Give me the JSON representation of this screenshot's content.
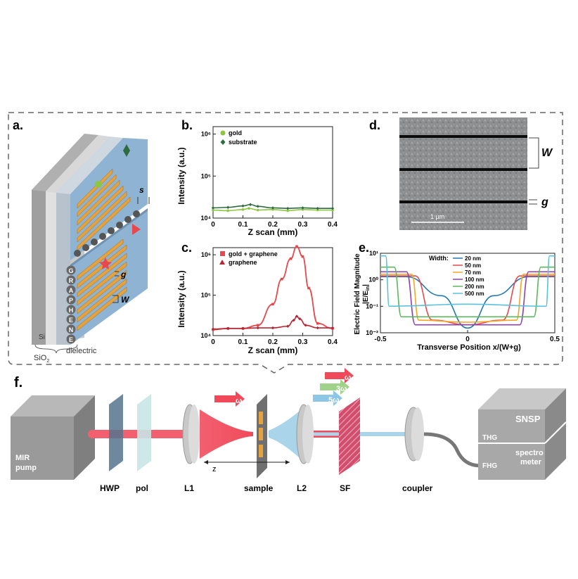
{
  "panels": {
    "a": {
      "label": "a.",
      "letters": [
        "G",
        "R",
        "A",
        "P",
        "H",
        "E",
        "N",
        "E"
      ],
      "si": "Si",
      "sio2": "SiO",
      "sio2_sub": "2",
      "dielectric": "dielectric",
      "s": "s",
      "g": "g",
      "w": "W"
    },
    "b": {
      "label": "b.",
      "ylabel": "Intensity (a.u.)",
      "xlabel": "Z scan (mm)",
      "legend": [
        "gold",
        "substrate"
      ]
    },
    "c": {
      "label": "c.",
      "ylabel": "Intensity (a.u.)",
      "xlabel": "Z scan (mm)",
      "legend": [
        "gold + graphene",
        "graphene"
      ]
    },
    "d": {
      "label": "d.",
      "w": "W",
      "g": "g",
      "scalebar": "1 µm"
    },
    "e": {
      "label": "e.",
      "ylabel_line1": "Electric Field Magnitude",
      "ylabel_line2": "|E/E",
      "ylabel_sub": "in",
      "ylabel_end": "|",
      "xlabel": "Transverse Position x/(W+g)",
      "legend_title": "Width:",
      "legend": [
        "20 nm",
        "50 nm",
        "70 nm",
        "100 nm",
        "200 nm",
        "500 nm"
      ]
    },
    "f": {
      "label": "f.",
      "mir": "MIR",
      "pump": "pump",
      "hwp": "HWP",
      "pol": "pol",
      "l1": "L1",
      "sample": "sample",
      "l2": "L2",
      "sf": "SF",
      "coupler": "coupler",
      "snsp": "SNSP",
      "spectro": "spectro",
      "meter": "meter",
      "thg": "THG",
      "fhg": "FHG",
      "z": "z",
      "omega": "ω",
      "omega3": "3ω",
      "omega5": "5ω"
    }
  },
  "colors": {
    "gold_green": "#8dc63f",
    "substrate_green": "#2e6b3e",
    "red": "#e8474c",
    "darkred": "#b82430",
    "chip_blue": "#8fb4d3",
    "beam_red": "#f04a5a",
    "beam_blue": "#a9d4ea"
  },
  "chart_data": [
    {
      "panel": "b",
      "type": "line",
      "xlim": [
        0,
        0.4
      ],
      "ylim": [
        10000,
        1500000
      ],
      "yscale": "log",
      "xticks": [
        0,
        0.1,
        0.2,
        0.3,
        0.4
      ],
      "yticks": [
        "10⁴",
        "10⁵",
        "10⁶"
      ],
      "series": [
        {
          "name": "gold",
          "x": [
            0,
            0.05,
            0.1,
            0.12,
            0.15,
            0.2,
            0.25,
            0.3,
            0.35,
            0.4
          ],
          "y": [
            15500,
            15000,
            16000,
            17000,
            15500,
            16000,
            15000,
            16000,
            15500,
            15500
          ]
        },
        {
          "name": "substrate",
          "x": [
            0,
            0.05,
            0.1,
            0.125,
            0.15,
            0.2,
            0.25,
            0.3,
            0.35,
            0.4
          ],
          "y": [
            17500,
            18000,
            19500,
            21000,
            19000,
            17500,
            17000,
            17500,
            17000,
            17000
          ]
        }
      ]
    },
    {
      "panel": "c",
      "type": "line",
      "xlim": [
        0,
        0.4
      ],
      "ylim": [
        10000,
        1500000
      ],
      "yscale": "log",
      "xticks": [
        0,
        0.1,
        0.2,
        0.3,
        0.4
      ],
      "yticks": [
        "10⁴",
        "10⁵",
        "10⁶"
      ],
      "series": [
        {
          "name": "gold + graphene",
          "x": [
            0,
            0.05,
            0.1,
            0.15,
            0.2,
            0.23,
            0.26,
            0.28,
            0.3,
            0.32,
            0.35,
            0.4
          ],
          "y": [
            14000,
            15000,
            15000,
            18000,
            60000,
            250000,
            800000,
            1600000,
            900000,
            150000,
            20000,
            15000
          ]
        },
        {
          "name": "graphene",
          "x": [
            0,
            0.05,
            0.1,
            0.15,
            0.2,
            0.25,
            0.27,
            0.28,
            0.29,
            0.31,
            0.35,
            0.4
          ],
          "y": [
            14500,
            15000,
            15000,
            15500,
            15500,
            17000,
            24000,
            30000,
            26000,
            18000,
            15500,
            15500
          ]
        }
      ]
    },
    {
      "panel": "e",
      "type": "line",
      "xlim": [
        -0.5,
        0.5
      ],
      "ylim": [
        0.01,
        10
      ],
      "yscale": "log",
      "xticks": [
        -0.5,
        0,
        0.5
      ],
      "yticks": [
        "10⁻²",
        "10⁻¹",
        "10⁰",
        "10¹"
      ],
      "series": [
        {
          "name": "20 nm",
          "x": [
            -0.5,
            -0.35,
            -0.15,
            0,
            0.15,
            0.35,
            0.5
          ],
          "y": [
            1.3,
            1.3,
            0.25,
            0.015,
            0.25,
            1.3,
            1.3
          ]
        },
        {
          "name": "50 nm",
          "x": [
            -0.5,
            -0.3,
            -0.2,
            0,
            0.2,
            0.3,
            0.5
          ],
          "y": [
            1.4,
            1.4,
            0.03,
            0.02,
            0.03,
            1.4,
            1.4
          ]
        },
        {
          "name": "70 nm",
          "x": [
            -0.5,
            -0.32,
            -0.28,
            0,
            0.28,
            0.32,
            0.5
          ],
          "y": [
            1.6,
            1.6,
            0.03,
            0.025,
            0.03,
            1.6,
            1.6
          ]
        },
        {
          "name": "100 nm",
          "x": [
            -0.5,
            -0.35,
            -0.3,
            0,
            0.3,
            0.35,
            0.5
          ],
          "y": [
            2,
            2,
            0.02,
            0.02,
            0.02,
            2,
            2
          ]
        },
        {
          "name": "200 nm",
          "x": [
            -0.5,
            -0.42,
            -0.38,
            0,
            0.38,
            0.42,
            0.5
          ],
          "y": [
            3,
            3,
            0.04,
            0.04,
            0.04,
            3,
            3
          ]
        },
        {
          "name": "500 nm",
          "x": [
            -0.5,
            -0.47,
            -0.45,
            0,
            0.45,
            0.47,
            0.5
          ],
          "y": [
            8,
            8,
            0.1,
            0.12,
            0.1,
            8,
            8
          ]
        }
      ]
    }
  ]
}
